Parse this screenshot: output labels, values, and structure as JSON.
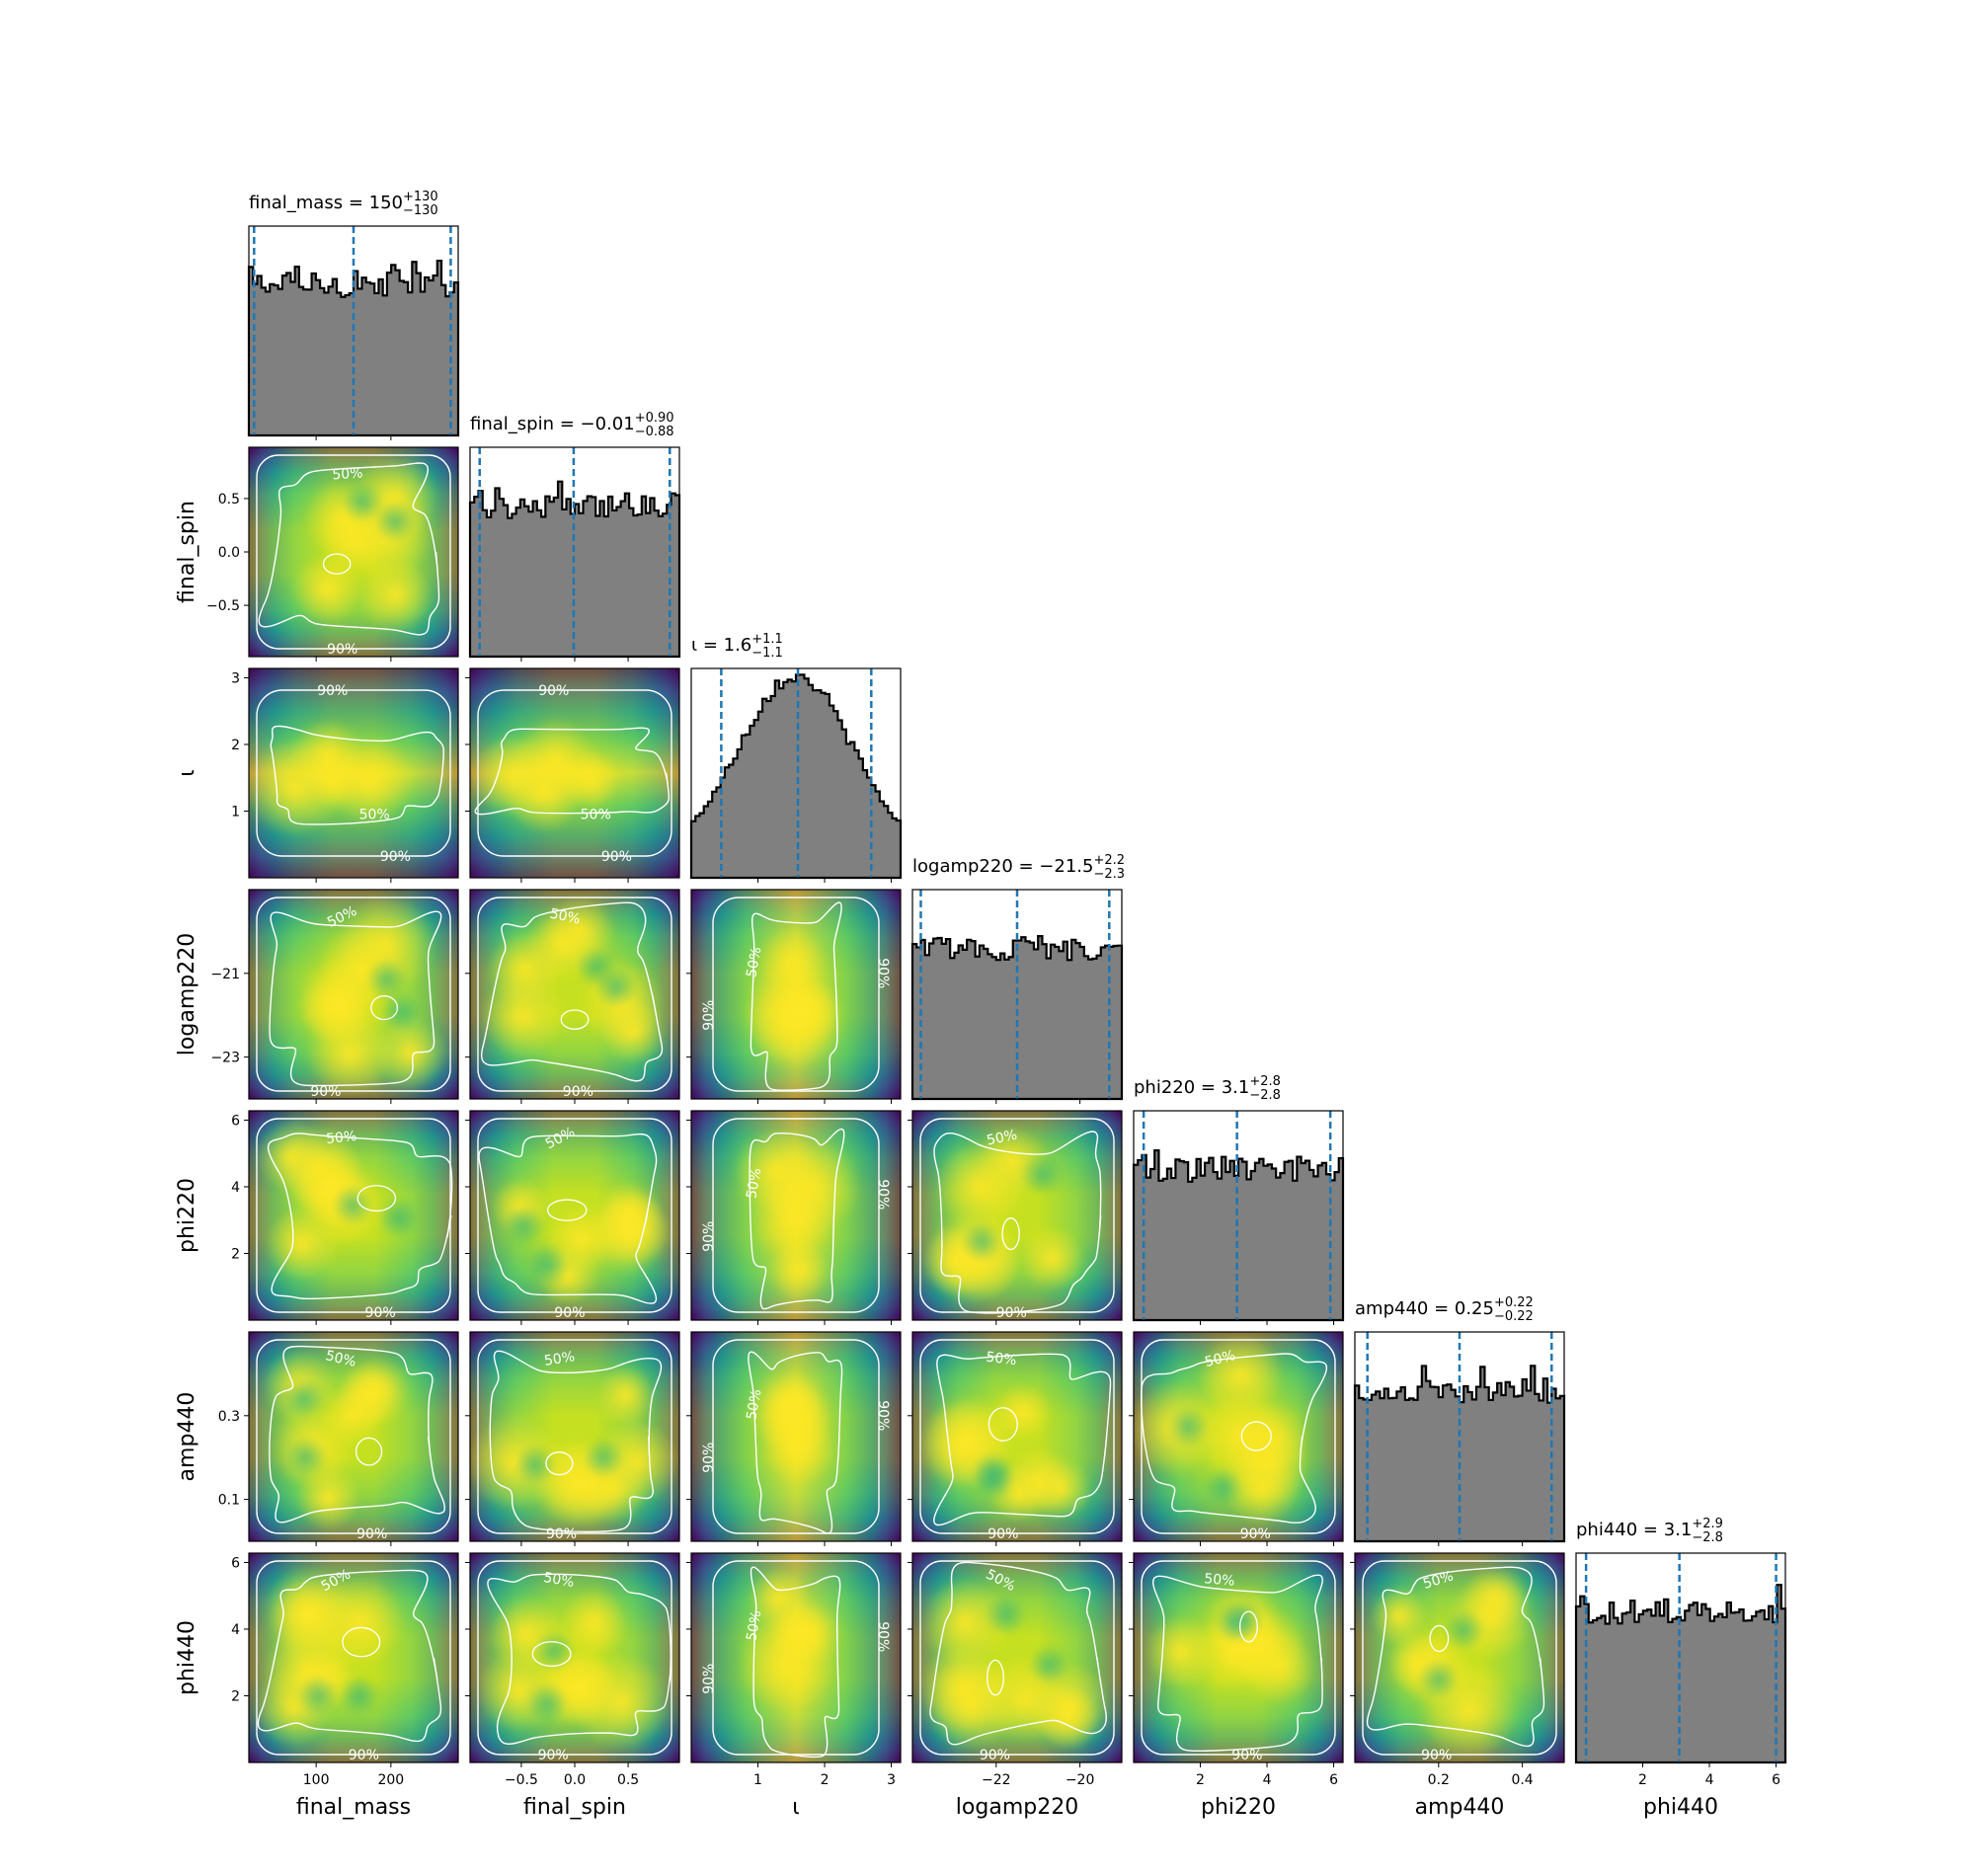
{
  "chart_data": {
    "type": "corner",
    "parameters": [
      {
        "name": "final_mass",
        "label": "final_mass",
        "range": [
          10,
          290
        ],
        "ticks": [
          100,
          200
        ],
        "tick_labels": [
          "100",
          "200"
        ],
        "title": {
          "prefix": "final_mass = 150",
          "sup": "+130",
          "sub": "−130"
        },
        "quantiles": [
          17,
          150,
          280
        ],
        "hist_shape": "flat"
      },
      {
        "name": "final_spin",
        "label": "final_spin",
        "range": [
          -0.98,
          0.98
        ],
        "ticks": [
          -0.5,
          0.0,
          0.5
        ],
        "tick_labels": [
          "−0.5",
          "0.0",
          "0.5"
        ],
        "title": {
          "prefix": "final_spin = −0.01",
          "sup": "+0.90",
          "sub": "−0.88"
        },
        "quantiles": [
          -0.89,
          -0.01,
          0.89
        ],
        "hist_shape": "flat"
      },
      {
        "name": "iota",
        "label": "ι",
        "range": [
          0.0,
          3.14
        ],
        "ticks": [
          1,
          2,
          3
        ],
        "tick_labels": [
          "1",
          "2",
          "3"
        ],
        "title": {
          "prefix": "ι = 1.6",
          "sup": "+1.1",
          "sub": "−1.1"
        },
        "quantiles": [
          0.45,
          1.6,
          2.7
        ],
        "hist_shape": "peaked"
      },
      {
        "name": "logamp220",
        "label": "logamp220",
        "range": [
          -24.0,
          -19.0
        ],
        "ticks": [
          -23,
          -21
        ],
        "tick_labels": [
          "−23",
          "−21"
        ],
        "xticks": [
          -22,
          -20
        ],
        "xtick_labels": [
          "−22",
          "−20"
        ],
        "title": {
          "prefix": "logamp220 = −21.5",
          "sup": "+2.2",
          "sub": "−2.3"
        },
        "quantiles": [
          -23.8,
          -21.5,
          -19.3
        ],
        "hist_shape": "flat"
      },
      {
        "name": "phi220",
        "label": "phi220",
        "range": [
          0.0,
          6.28
        ],
        "ticks": [
          2,
          4,
          6
        ],
        "tick_labels": [
          "2",
          "4",
          "6"
        ],
        "title": {
          "prefix": "phi220 = 3.1",
          "sup": "+2.8",
          "sub": "−2.8"
        },
        "quantiles": [
          0.3,
          3.1,
          5.9
        ],
        "hist_shape": "flat"
      },
      {
        "name": "amp440",
        "label": "amp440",
        "range": [
          0.0,
          0.5
        ],
        "ticks": [
          0.1,
          0.3
        ],
        "tick_labels": [
          "0.1",
          "0.3"
        ],
        "xticks": [
          0.2,
          0.4
        ],
        "xtick_labels": [
          "0.2",
          "0.4"
        ],
        "title": {
          "prefix": "amp440 = 0.25",
          "sup": "+0.22",
          "sub": "−0.22"
        },
        "quantiles": [
          0.03,
          0.25,
          0.47
        ],
        "hist_shape": "flat"
      },
      {
        "name": "phi440",
        "label": "phi440",
        "range": [
          0.0,
          6.28
        ],
        "ticks": [
          2,
          4,
          6
        ],
        "tick_labels": [
          "2",
          "4",
          "6"
        ],
        "title": {
          "prefix": "phi440 = 3.1",
          "sup": "+2.9",
          "sub": "−2.8"
        },
        "quantiles": [
          0.3,
          3.1,
          6.0
        ],
        "hist_shape": "flat"
      }
    ],
    "contour_levels": [
      "50%",
      "90%"
    ],
    "hist_color": "#808080",
    "quantile_color": "#1f77b4",
    "colormap": [
      "#440154",
      "#3b528b",
      "#21918c",
      "#5ec962",
      "#fde725"
    ]
  }
}
